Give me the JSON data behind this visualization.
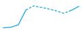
{
  "x": [
    0,
    1,
    2,
    3,
    4,
    5,
    6,
    7,
    8,
    9,
    10
  ],
  "y": [
    0.3,
    0.5,
    1.5,
    7.5,
    9.2,
    8.6,
    8.0,
    7.2,
    6.2,
    7.4,
    9.0
  ],
  "line_color": "#29a8e0",
  "line_width": 1.0,
  "background_color": "#ffffff",
  "solid_end": 3,
  "dash_end": 9,
  "ylim": [
    0,
    11
  ],
  "xlim": [
    -0.2,
    10.2
  ]
}
